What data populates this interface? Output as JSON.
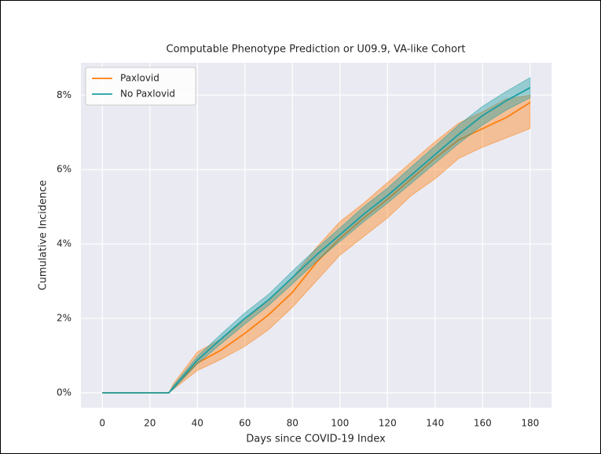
{
  "chart_data": {
    "type": "line",
    "title": "Computable Phenotype Prediction or U09.9, VA-like Cohort",
    "x_label": "Days since COVID-19 Index",
    "y_label": "Cumulative Incidence",
    "x": [
      0,
      10,
      20,
      28,
      30,
      40,
      50,
      60,
      70,
      80,
      90,
      100,
      110,
      120,
      130,
      140,
      150,
      160,
      170,
      180
    ],
    "series": [
      {
        "name": "Paxlovid",
        "color": "#ff7f0e",
        "values": [
          0,
          0,
          0,
          0,
          0.15,
          0.8,
          1.15,
          1.6,
          2.1,
          2.7,
          3.5,
          4.15,
          4.7,
          5.2,
          5.75,
          6.3,
          6.8,
          7.1,
          7.4,
          7.8
        ],
        "lower": [
          0,
          0,
          0,
          0,
          0.1,
          0.6,
          0.9,
          1.25,
          1.7,
          2.3,
          3.0,
          3.7,
          4.2,
          4.7,
          5.3,
          5.75,
          6.3,
          6.6,
          6.85,
          7.1
        ],
        "upper": [
          0,
          0,
          0,
          0,
          0.25,
          1.1,
          1.45,
          1.95,
          2.5,
          3.1,
          3.9,
          4.6,
          5.1,
          5.65,
          6.2,
          6.75,
          7.25,
          7.55,
          7.9,
          8.0
        ]
      },
      {
        "name": "No Paxlovid",
        "color": "#1b9ea3",
        "values": [
          0,
          0,
          0,
          0,
          0.15,
          0.88,
          1.45,
          2.0,
          2.5,
          3.1,
          3.7,
          4.25,
          4.8,
          5.3,
          5.85,
          6.4,
          6.95,
          7.45,
          7.85,
          8.2
        ],
        "lower": [
          0,
          0,
          0,
          0,
          0.1,
          0.78,
          1.32,
          1.85,
          2.35,
          2.93,
          3.53,
          4.07,
          4.6,
          5.1,
          5.63,
          6.17,
          6.7,
          7.2,
          7.6,
          7.93
        ],
        "upper": [
          0,
          0,
          0,
          0,
          0.2,
          0.98,
          1.58,
          2.15,
          2.65,
          3.27,
          3.87,
          4.43,
          5.0,
          5.5,
          6.07,
          6.63,
          7.2,
          7.7,
          8.1,
          8.47
        ]
      }
    ],
    "xlim": [
      -9,
      189
    ],
    "ylim": [
      -0.4,
      8.87
    ],
    "xticks": [
      0,
      20,
      40,
      60,
      80,
      100,
      120,
      140,
      160,
      180
    ],
    "yticks": [
      {
        "value": 0,
        "label": "0%"
      },
      {
        "value": 2,
        "label": "2%"
      },
      {
        "value": 4,
        "label": "4%"
      },
      {
        "value": 6,
        "label": "6%"
      },
      {
        "value": 8,
        "label": "8%"
      }
    ],
    "grid": true,
    "legend": "upper left"
  }
}
